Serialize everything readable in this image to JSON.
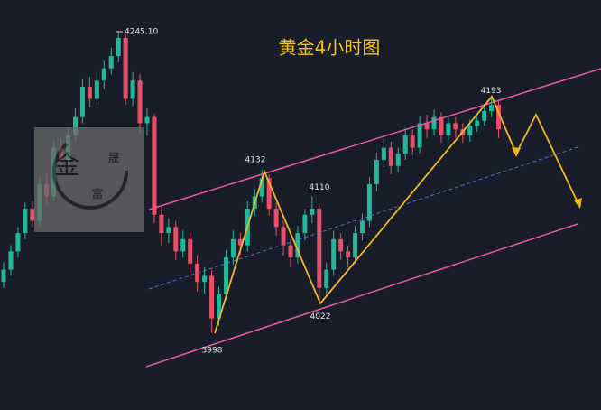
{
  "chart_data": {
    "type": "candlestick",
    "title": "黄金4小时图",
    "ylim": [
      3935,
      4271
    ],
    "up_color": "#1fb89a",
    "down_color": "#e8506a",
    "candles": [
      [
        4040,
        4056,
        4035,
        4050
      ],
      [
        4050,
        4070,
        4045,
        4065
      ],
      [
        4065,
        4085,
        4060,
        4080
      ],
      [
        4080,
        4105,
        4075,
        4100
      ],
      [
        4100,
        4106,
        4085,
        4090
      ],
      [
        4090,
        4126,
        4086,
        4120
      ],
      [
        4120,
        4128,
        4104,
        4110
      ],
      [
        4110,
        4156,
        4106,
        4150
      ],
      [
        4150,
        4158,
        4134,
        4140
      ],
      [
        4140,
        4166,
        4135,
        4160
      ],
      [
        4160,
        4182,
        4155,
        4175
      ],
      [
        4175,
        4206,
        4170,
        4200
      ],
      [
        4200,
        4208,
        4183,
        4190
      ],
      [
        4190,
        4212,
        4185,
        4205
      ],
      [
        4205,
        4222,
        4198,
        4215
      ],
      [
        4215,
        4232,
        4210,
        4225
      ],
      [
        4225,
        4245.1,
        4220,
        4240
      ],
      [
        4240,
        4243,
        4185,
        4190
      ],
      [
        4190,
        4212,
        4184,
        4205
      ],
      [
        4205,
        4210,
        4162,
        4170
      ],
      [
        4170,
        4182,
        4160,
        4175
      ],
      [
        4175,
        4178,
        4088,
        4095
      ],
      [
        4095,
        4102,
        4070,
        4080
      ],
      [
        4080,
        4092,
        4072,
        4085
      ],
      [
        4085,
        4090,
        4058,
        4065
      ],
      [
        4065,
        4082,
        4060,
        4075
      ],
      [
        4075,
        4080,
        4048,
        4055
      ],
      [
        4055,
        4062,
        4032,
        4040
      ],
      [
        4040,
        4052,
        4030,
        4045
      ],
      [
        4045,
        4050,
        3998,
        4010
      ],
      [
        4010,
        4036,
        4004,
        4030
      ],
      [
        4030,
        4066,
        4025,
        4060
      ],
      [
        4060,
        4082,
        4054,
        4075
      ],
      [
        4075,
        4080,
        4062,
        4070
      ],
      [
        4070,
        4106,
        4065,
        4100
      ],
      [
        4100,
        4116,
        4094,
        4110
      ],
      [
        4110,
        4132,
        4105,
        4125
      ],
      [
        4125,
        4128,
        4094,
        4100
      ],
      [
        4100,
        4105,
        4078,
        4085
      ],
      [
        4085,
        4090,
        4062,
        4070
      ],
      [
        4070,
        4075,
        4052,
        4060
      ],
      [
        4060,
        4086,
        4055,
        4080
      ],
      [
        4080,
        4100,
        4074,
        4095
      ],
      [
        4095,
        4110,
        4088,
        4100
      ],
      [
        4100,
        4104,
        4022,
        4035
      ],
      [
        4035,
        4056,
        4028,
        4050
      ],
      [
        4050,
        4082,
        4045,
        4075
      ],
      [
        4075,
        4080,
        4058,
        4065
      ],
      [
        4065,
        4070,
        4052,
        4060
      ],
      [
        4060,
        4086,
        4055,
        4080
      ],
      [
        4080,
        4096,
        4074,
        4090
      ],
      [
        4090,
        4126,
        4085,
        4120
      ],
      [
        4120,
        4146,
        4114,
        4140
      ],
      [
        4140,
        4158,
        4134,
        4150
      ],
      [
        4150,
        4155,
        4128,
        4135
      ],
      [
        4135,
        4150,
        4130,
        4145
      ],
      [
        4145,
        4166,
        4140,
        4160
      ],
      [
        4160,
        4165,
        4144,
        4150
      ],
      [
        4150,
        4176,
        4145,
        4170
      ],
      [
        4170,
        4177,
        4158,
        4165
      ],
      [
        4165,
        4181,
        4160,
        4175
      ],
      [
        4175,
        4179,
        4154,
        4160
      ],
      [
        4160,
        4176,
        4155,
        4170
      ],
      [
        4170,
        4175,
        4158,
        4165
      ],
      [
        4165,
        4170,
        4154,
        4160
      ],
      [
        4160,
        4173,
        4155,
        4168
      ],
      [
        4168,
        4177,
        4163,
        4172
      ],
      [
        4172,
        4186,
        4168,
        4180
      ],
      [
        4180,
        4193,
        4175,
        4185
      ],
      [
        4185,
        4188,
        4158,
        4165
      ]
    ],
    "annotations": [
      {
        "price": 4245.1,
        "label": "4245.10"
      },
      {
        "price": 4193,
        "label": "4193"
      },
      {
        "price": 4132,
        "label": "4132"
      },
      {
        "price": 4110,
        "label": "4110"
      },
      {
        "price": 4022,
        "label": "4022"
      },
      {
        "price": 3998,
        "label": "3998"
      }
    ],
    "watermark": {
      "chars": [
        "金",
        "晟",
        "富"
      ]
    }
  }
}
